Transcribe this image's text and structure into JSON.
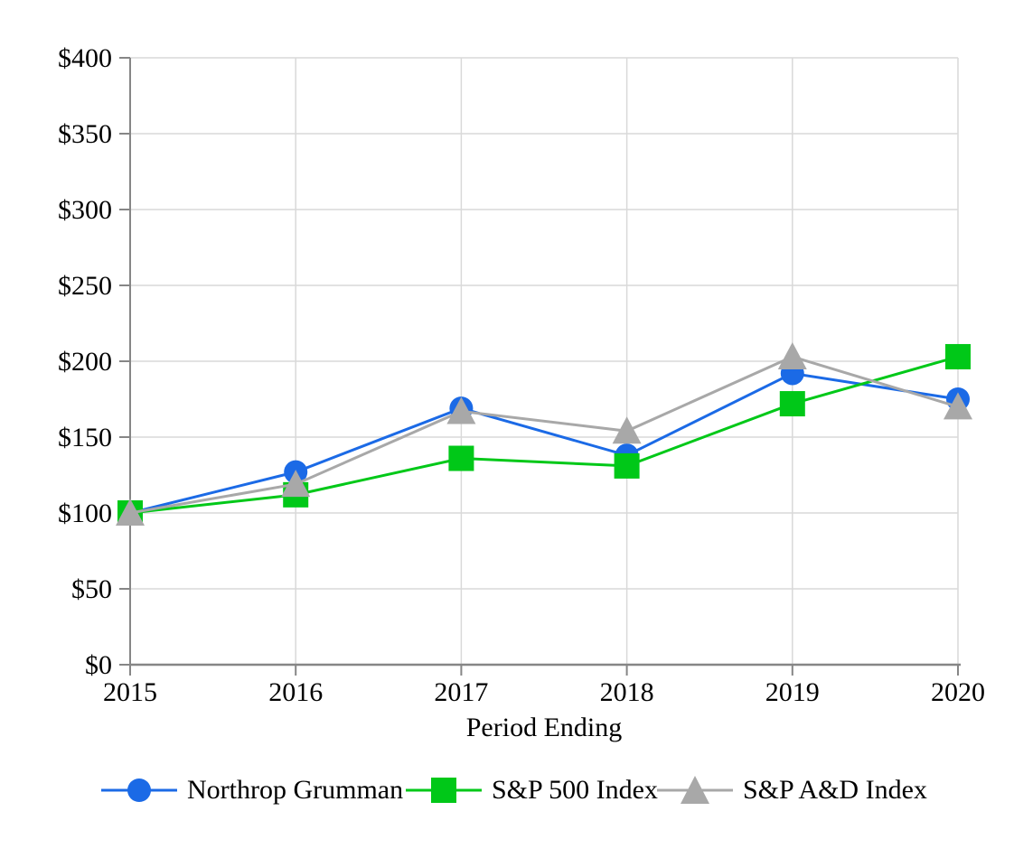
{
  "chart_data": {
    "type": "line",
    "x": [
      "2015",
      "2016",
      "2017",
      "2018",
      "2019",
      "2020"
    ],
    "series": [
      {
        "name": "Northrop Grumman",
        "marker": "circle",
        "color": "#1b6ae6",
        "values": [
          100,
          127,
          169,
          138,
          192,
          175
        ]
      },
      {
        "name": "S&P 500 Index",
        "marker": "square",
        "color": "#00c818",
        "values": [
          100,
          112,
          136,
          131,
          172,
          203
        ]
      },
      {
        "name": "S&P A&D Index",
        "marker": "triangle",
        "color": "#a8a8a8",
        "values": [
          100,
          119,
          167,
          154,
          203,
          170
        ]
      }
    ],
    "title": "",
    "xlabel": "Period Ending",
    "ylabel": "",
    "ylim": [
      0,
      400
    ],
    "y_tick_step": 50,
    "y_tick_labels": [
      "$0",
      "$50",
      "$100",
      "$150",
      "$200",
      "$250",
      "$300",
      "$350",
      "$400"
    ],
    "grid": true,
    "legend_position": "bottom"
  },
  "colors": {
    "background": "#ffffff",
    "gridline": "#d9d9d9",
    "axis": "#868686",
    "text": "#000000"
  }
}
